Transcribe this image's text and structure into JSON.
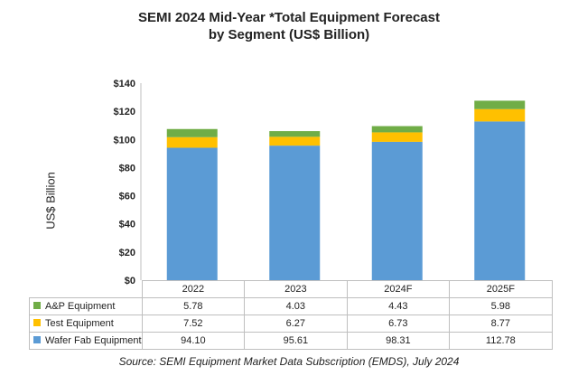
{
  "title_line1": "SEMI 2024 Mid-Year *Total Equipment Forecast",
  "title_line2": "by Segment (US$ Billion)",
  "source": "Source: SEMI Equipment Market Data Subscription (EMDS), July 2024",
  "colors": {
    "wafer_fab": "#5B9BD5",
    "test": "#FFC000",
    "ap": "#70AD47"
  },
  "chart_data": {
    "type": "bar",
    "stacked": true,
    "categories": [
      "2022",
      "2023",
      "2024F",
      "2025F"
    ],
    "series": [
      {
        "name": "Wafer Fab Equipment",
        "values": [
          "94.10",
          "95.61",
          "98.31",
          "112.78"
        ],
        "color": "#5B9BD5"
      },
      {
        "name": "Test Equipment",
        "values": [
          "7.52",
          "6.27",
          "6.73",
          "8.77"
        ],
        "color": "#FFC000"
      },
      {
        "name": "A&P Equipment",
        "values": [
          "5.78",
          "4.03",
          "4.43",
          "5.98"
        ],
        "color": "#70AD47"
      }
    ],
    "table_order": [
      "A&P Equipment",
      "Test Equipment",
      "Wafer Fab Equipment"
    ],
    "ylabel": "US$ Billion",
    "ylim": [
      0,
      140
    ],
    "yticks": [
      "$0",
      "$20",
      "$40",
      "$60",
      "$80",
      "$100",
      "$120",
      "$140"
    ],
    "grid": false,
    "legend": "data table"
  }
}
